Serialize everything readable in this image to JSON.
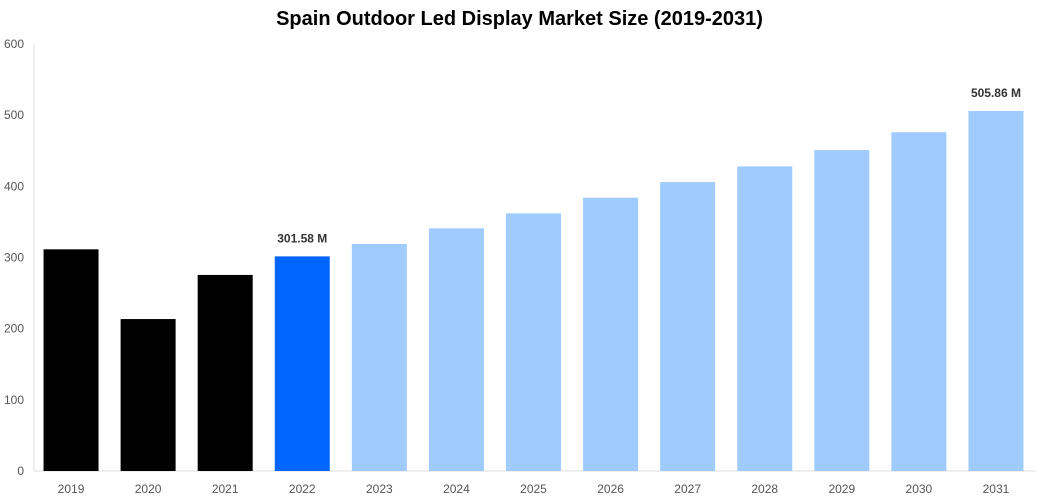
{
  "chart_data": {
    "type": "bar",
    "title": "Spain Outdoor Led Display Market Size (2019-2031)",
    "xlabel": "",
    "ylabel": "",
    "ylim": [
      0,
      600
    ],
    "yticks": [
      0,
      100,
      200,
      300,
      400,
      500,
      600
    ],
    "grid": false,
    "categories": [
      "2019",
      "2020",
      "2021",
      "2022",
      "2023",
      "2024",
      "2025",
      "2026",
      "2027",
      "2028",
      "2029",
      "2030",
      "2031"
    ],
    "values": [
      311.5,
      213.5,
      275.5,
      301.58,
      319,
      341,
      362,
      384,
      406,
      428,
      451,
      476,
      505.86
    ],
    "colors": [
      "#000000",
      "#000000",
      "#000000",
      "#0066ff",
      "#a0cbfe",
      "#a0cbfe",
      "#a0cbfe",
      "#a0cbfe",
      "#a0cbfe",
      "#a0cbfe",
      "#a0cbfe",
      "#a0cbfe",
      "#a0cbfe"
    ],
    "data_labels": [
      {
        "category": "2022",
        "text": "301.58 M"
      },
      {
        "category": "2031",
        "text": "505.86 M"
      }
    ]
  }
}
